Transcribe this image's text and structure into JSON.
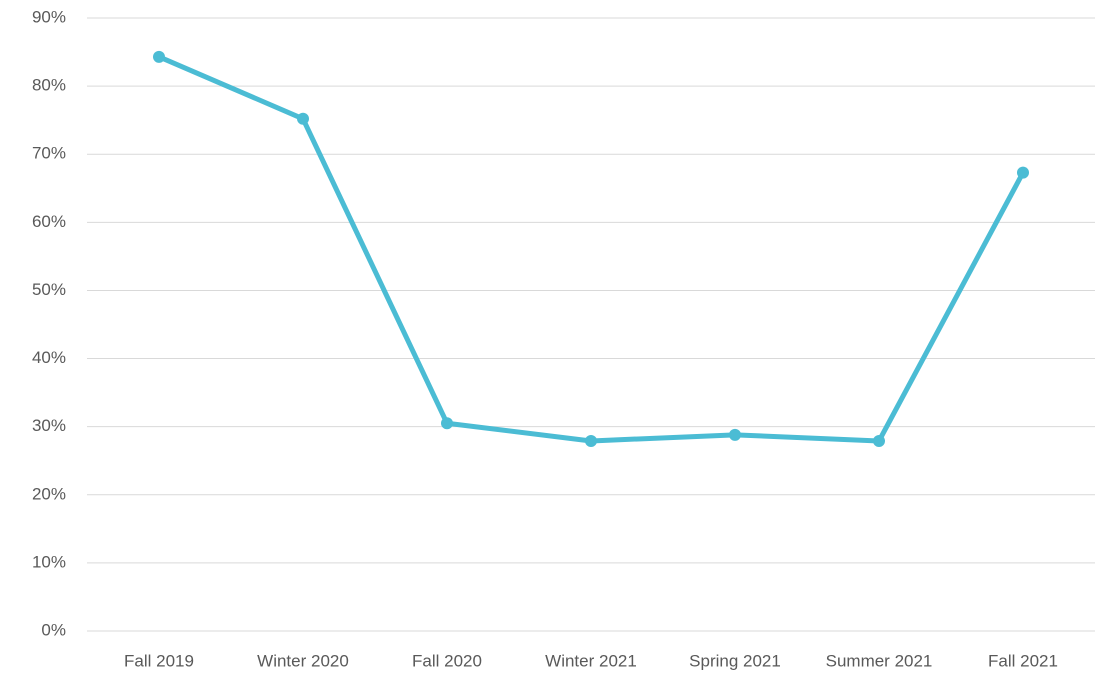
{
  "chart_data": {
    "type": "line",
    "categories": [
      "Fall 2019",
      "Winter 2020",
      "Fall 2020",
      "Winter 2021",
      "Spring 2021",
      "Summer 2021",
      "Fall 2021"
    ],
    "series": [
      {
        "color": "#4bbcd4",
        "values": [
          84.3,
          75.2,
          30.5,
          27.9,
          28.8,
          27.9,
          67.3
        ]
      }
    ],
    "ylim": [
      0,
      90
    ],
    "yticks": [
      {
        "value": 0,
        "label": "0%"
      },
      {
        "value": 10,
        "label": "10%"
      },
      {
        "value": 20,
        "label": "20%"
      },
      {
        "value": 30,
        "label": "30%"
      },
      {
        "value": 40,
        "label": "40%"
      },
      {
        "value": 50,
        "label": "50%"
      },
      {
        "value": 60,
        "label": "60%"
      },
      {
        "value": 70,
        "label": "70%"
      },
      {
        "value": 80,
        "label": "80%"
      },
      {
        "value": 90,
        "label": "90%"
      }
    ],
    "grid": true
  }
}
